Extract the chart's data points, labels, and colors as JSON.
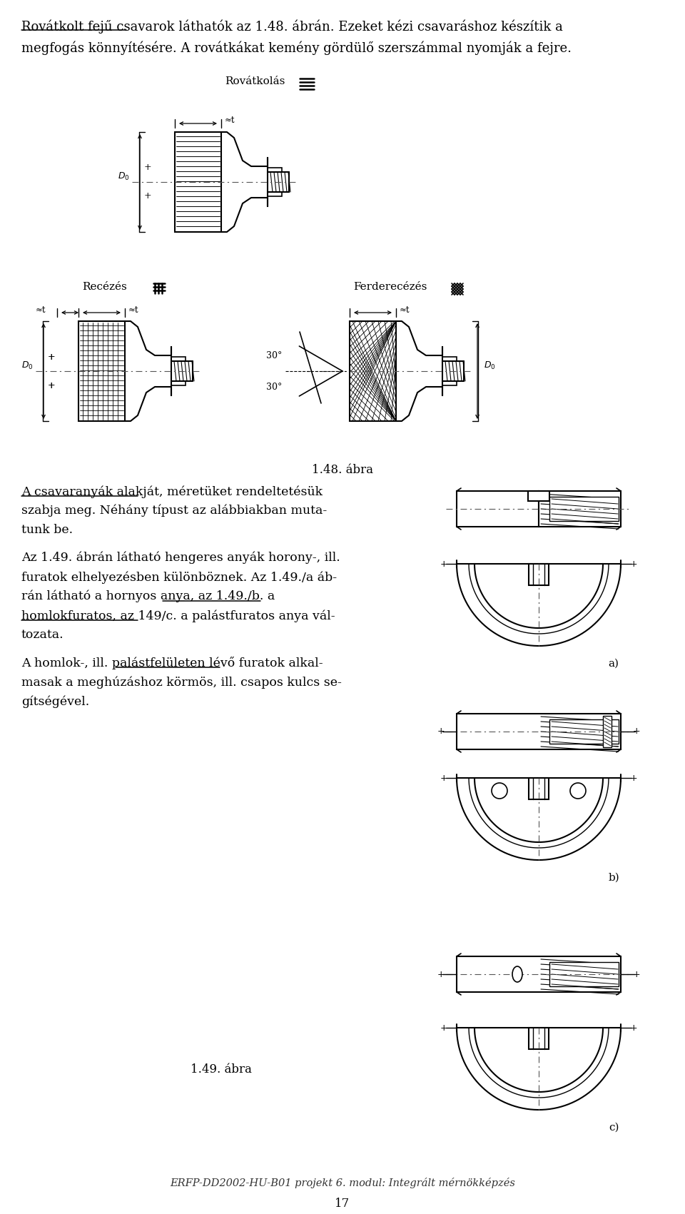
{
  "bg_color": "#ffffff",
  "page_width": 9.6,
  "page_height": 17.01,
  "dpi": 100,
  "title_line1": "Rovátkolt fejű csavarok láthatók az 1.48. ábrán. Ezeket kézi csavaráshoz készítik a",
  "title_line2": "megfogás könnyítésére. A rovátkákat kemény gördülő szerszámmal nyomják a fejre.",
  "fig_148_caption": "1.48. ábra",
  "fig_149_caption": "1.49. ábra",
  "label_rovatkolas": "Rovátkolás",
  "label_reczes": "Recézés",
  "label_ferdereczes": "Ferderecézés",
  "text_para1_line1": "A csavaranyák alakját, méretüket rendeltetésük",
  "text_para1_line2": "szabja meg. Néhány típust az alábbiakban muta-",
  "text_para1_line3": "tunk be.",
  "text_para2_line1": "Az 1.49. ábrán látható hengeres anyák horony-, ill.",
  "text_para2_line2": "furatok elhelyezésben különböznek. Az 1.49./a áb-",
  "text_para2_line3": "rán látható a hornyos anya, az 1.49./b. a",
  "text_para2_line4": "homlokfuratos, az 149/c. a palástfuratos anya vál-",
  "text_para2_line5": "tozata.",
  "text_para3_line1": "A homlok-, ill. palástfelületen lévő furatok alkal-",
  "text_para3_line2": "masak a meghúzáshoz körmös, ill. csapos kulcs se-",
  "text_para3_line3": "gítségével.",
  "label_a": "a)",
  "label_b": "b)",
  "label_c": "c)",
  "footer": "ERFP-DD2002-HU-B01 projekt 6. modul: Integrált mérnökképzés",
  "page_num": "17"
}
